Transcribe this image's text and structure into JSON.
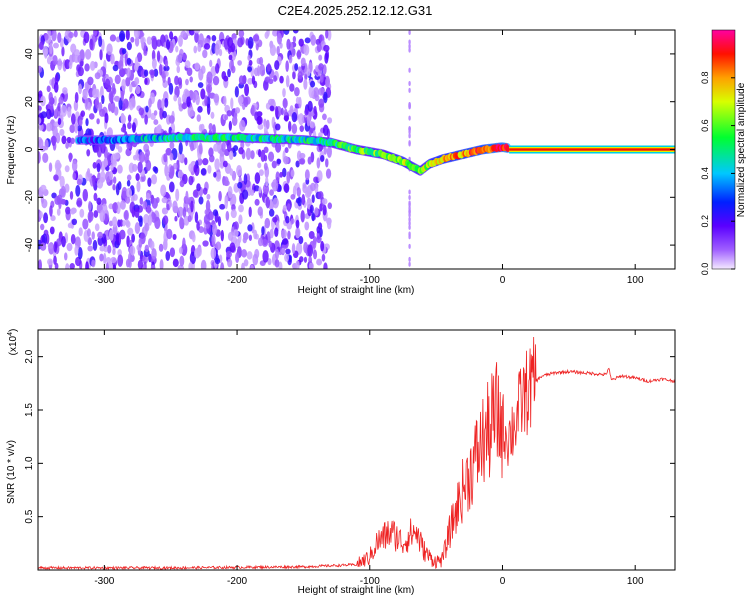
{
  "title": "C2E4.2025.252.12.12.G31",
  "chart_data": [
    {
      "type": "heatmap",
      "name": "spectrogram",
      "xlabel": "Height of straight line (km)",
      "ylabel": "Frequency (Hz)",
      "xlim": [
        -350,
        130
      ],
      "ylim": [
        -50,
        50
      ],
      "xticks": [
        -300,
        -200,
        -100,
        0,
        100
      ],
      "xtick_labels": [
        "-300",
        "-200",
        "-100",
        "0",
        "100"
      ],
      "yticks": [
        -40,
        -20,
        0,
        20,
        40
      ],
      "ytick_labels": [
        "-40",
        "-20",
        "0",
        "20",
        "40"
      ],
      "colorbar": {
        "label": "Normalized spectral amplitude",
        "range": [
          0.0,
          1.0
        ],
        "ticks": [
          0.0,
          0.2,
          0.4,
          0.6,
          0.8
        ],
        "tick_labels": [
          "0.0",
          "0.2",
          "0.4",
          "0.6",
          "0.8"
        ],
        "colors": [
          "#f4eaff",
          "#8800ff",
          "#2200ff",
          "#00d0ff",
          "#00ff40",
          "#e0ff00",
          "#ff9900",
          "#ff0000",
          "#ff00a0"
        ]
      },
      "ridge": {
        "x": [
          -350,
          -300,
          -250,
          -200,
          -150,
          -130,
          -110,
          -90,
          -75,
          -62,
          -55,
          -45,
          -30,
          -15,
          0,
          10,
          50,
          100,
          130
        ],
        "freq": [
          4,
          4,
          5,
          5,
          4,
          3,
          0,
          -2,
          -5,
          -9,
          -6,
          -4,
          -2,
          0,
          1,
          0,
          0,
          0,
          0
        ],
        "amplitude": [
          0.3,
          0.3,
          0.45,
          0.45,
          0.45,
          0.5,
          0.55,
          0.6,
          0.7,
          0.6,
          0.7,
          0.75,
          0.8,
          0.85,
          0.95,
          1.0,
          1.0,
          1.0,
          1.0
        ]
      },
      "noise_region_x": [
        -350,
        -130
      ]
    },
    {
      "type": "line",
      "name": "snr",
      "xlabel": "Height of straight line (km)",
      "ylabel": "SNR (10 * v/v)",
      "y_multiplier_label": "(x10",
      "y_multiplier_exp": "4",
      "y_multiplier_close": ")",
      "xlim": [
        -350,
        130
      ],
      "ylim": [
        0,
        2.25
      ],
      "xticks": [
        -300,
        -200,
        -100,
        0,
        100
      ],
      "xtick_labels": [
        "-300",
        "-200",
        "-100",
        "0",
        "100"
      ],
      "yticks": [
        0.5,
        1.0,
        1.5,
        2.0
      ],
      "ytick_labels": [
        "0.5",
        "1.0",
        "1.5",
        "2.0"
      ],
      "color": "#ee2222",
      "series": [
        {
          "name": "SNR",
          "x": [
            -350,
            -250,
            -150,
            -110,
            -100,
            -95,
            -90,
            -85,
            -80,
            -75,
            -70,
            -65,
            -60,
            -55,
            -50,
            -45,
            -40,
            -35,
            -30,
            -25,
            -20,
            -15,
            -10,
            -5,
            0,
            5,
            10,
            15,
            20,
            25,
            30,
            40,
            50,
            60,
            70,
            78,
            80,
            82,
            90,
            100,
            110,
            120,
            125,
            130
          ],
          "y": [
            0.02,
            0.02,
            0.03,
            0.05,
            0.12,
            0.25,
            0.3,
            0.35,
            0.32,
            0.25,
            0.33,
            0.36,
            0.2,
            0.12,
            0.08,
            0.1,
            0.35,
            0.55,
            0.75,
            0.9,
            1.05,
            1.2,
            1.3,
            1.45,
            1.35,
            1.25,
            1.4,
            1.6,
            1.7,
            1.77,
            1.82,
            1.85,
            1.86,
            1.85,
            1.84,
            1.83,
            1.9,
            1.78,
            1.82,
            1.8,
            1.77,
            1.79,
            1.78,
            1.77
          ]
        }
      ]
    }
  ]
}
